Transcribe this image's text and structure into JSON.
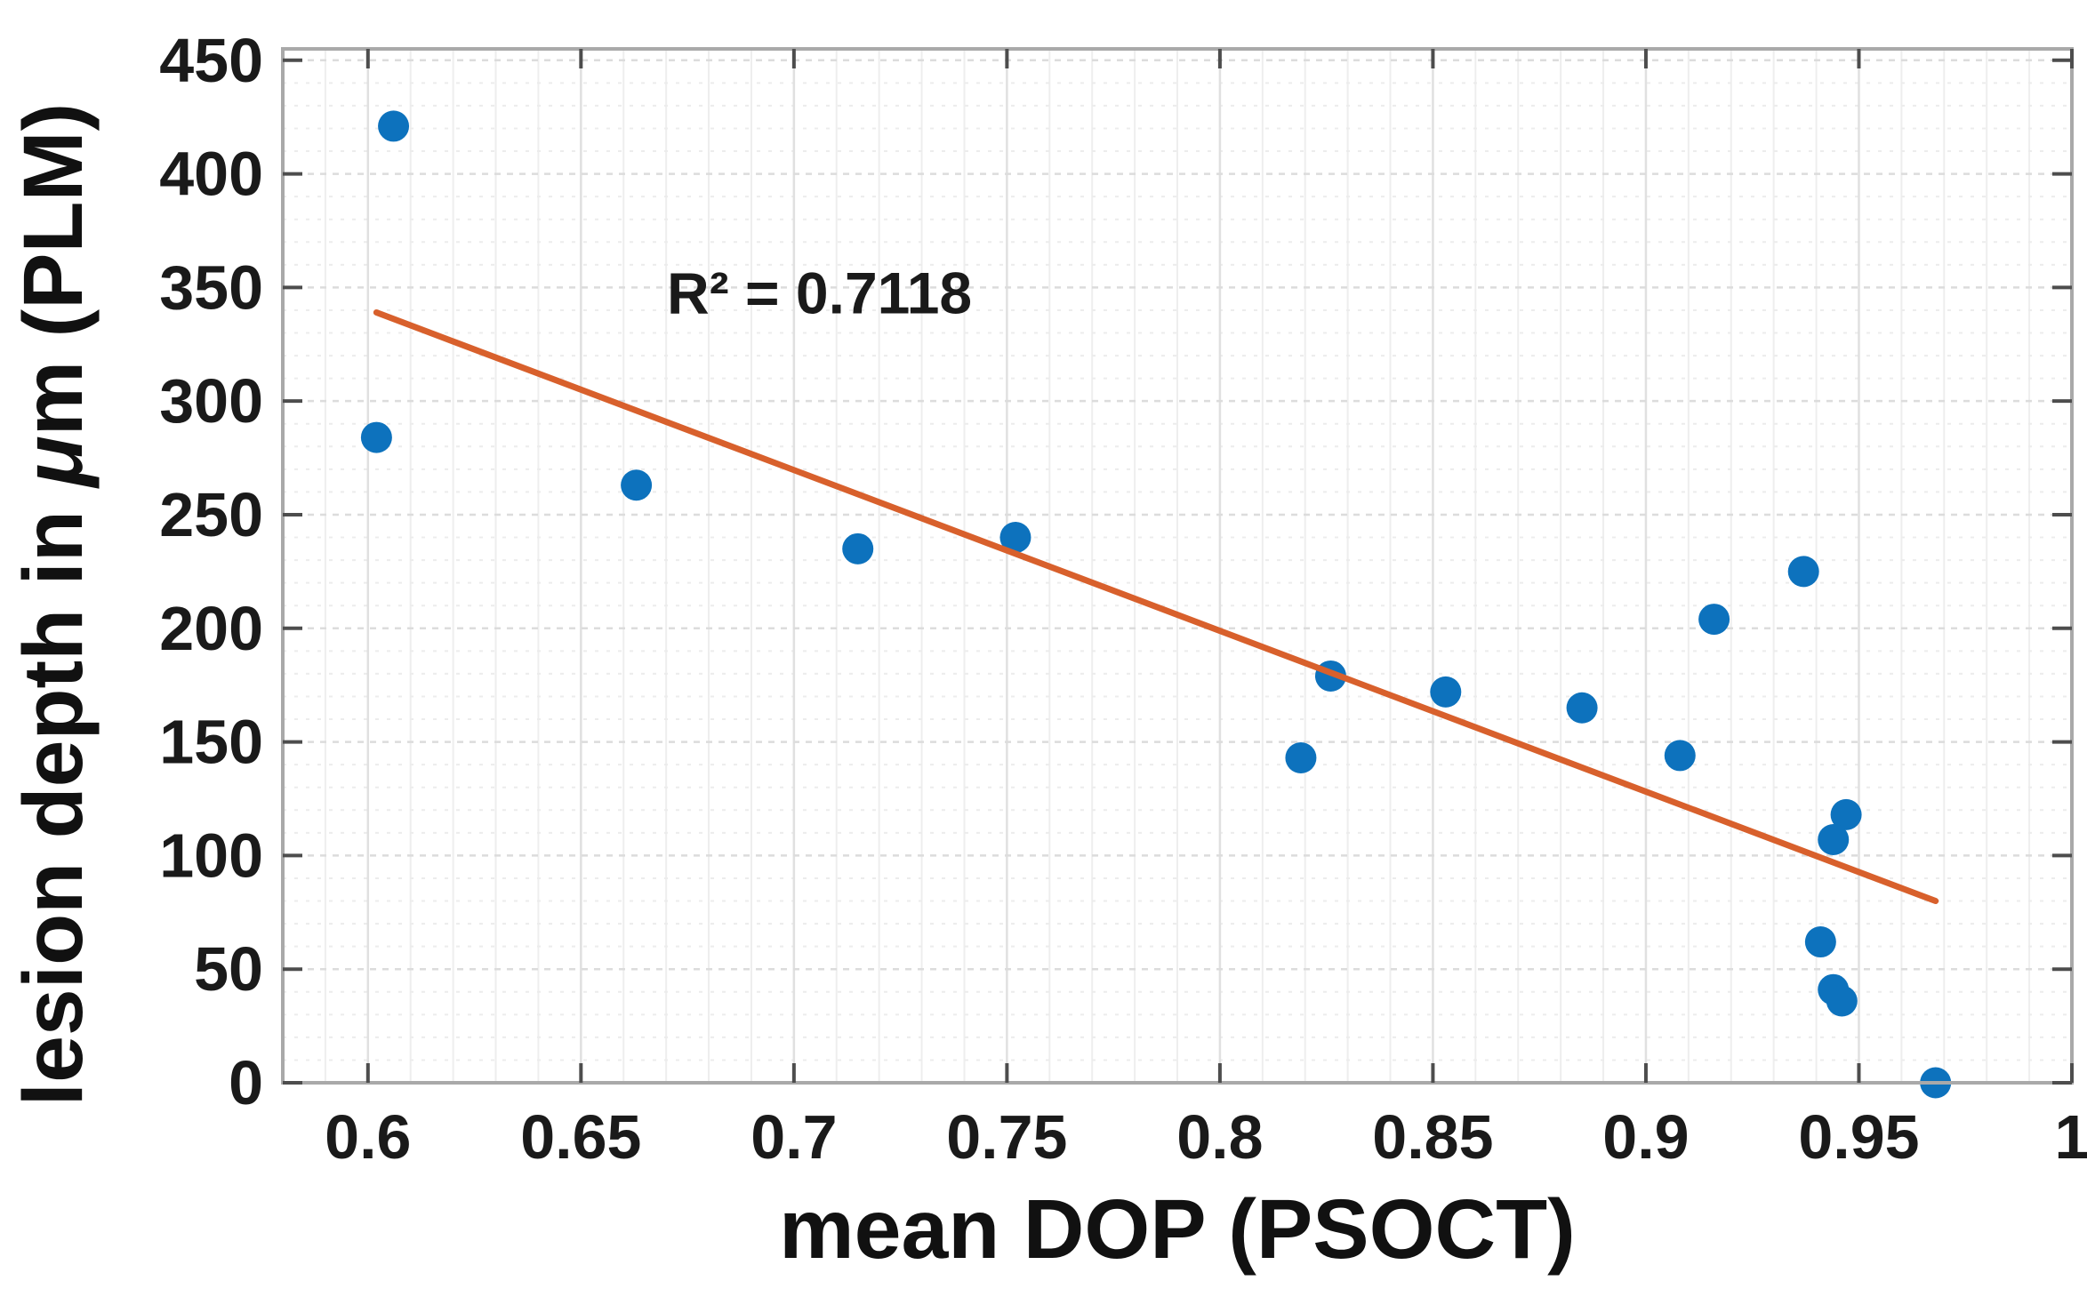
{
  "chart_data": {
    "type": "scatter",
    "title": "",
    "xlabel": "mean DOP (PSOCT)",
    "ylabel_parts": [
      {
        "text": "lesion depth in ",
        "italic": false
      },
      {
        "text": "μ",
        "italic": true
      },
      {
        "text": "m (PLM)",
        "italic": false
      }
    ],
    "annotation": {
      "text": "R² = 0.7118",
      "x": 0.706,
      "y": 348
    },
    "xlim": [
      0.58,
      1.0
    ],
    "ylim": [
      0,
      455
    ],
    "x_ticks": [
      0.6,
      0.65,
      0.7,
      0.75,
      0.8,
      0.85,
      0.9,
      0.95,
      1.0
    ],
    "x_tick_labels": [
      "0.6",
      "0.65",
      "0.7",
      "0.75",
      "0.8",
      "0.85",
      "0.9",
      "0.95",
      "1"
    ],
    "y_ticks": [
      0,
      50,
      100,
      150,
      200,
      250,
      300,
      350,
      400,
      450
    ],
    "y_tick_labels": [
      "0",
      "50",
      "100",
      "150",
      "200",
      "250",
      "300",
      "350",
      "400",
      "450"
    ],
    "x_minor_step": 0.01,
    "y_minor_step": 10,
    "grid": "on",
    "minor_grid": "on",
    "legend": "none",
    "points": [
      {
        "x": 0.606,
        "y": 421
      },
      {
        "x": 0.602,
        "y": 284
      },
      {
        "x": 0.663,
        "y": 263
      },
      {
        "x": 0.715,
        "y": 235
      },
      {
        "x": 0.752,
        "y": 240
      },
      {
        "x": 0.826,
        "y": 179
      },
      {
        "x": 0.819,
        "y": 143
      },
      {
        "x": 0.853,
        "y": 172
      },
      {
        "x": 0.885,
        "y": 165
      },
      {
        "x": 0.908,
        "y": 144
      },
      {
        "x": 0.916,
        "y": 204
      },
      {
        "x": 0.937,
        "y": 225
      },
      {
        "x": 0.947,
        "y": 118
      },
      {
        "x": 0.944,
        "y": 107
      },
      {
        "x": 0.941,
        "y": 62
      },
      {
        "x": 0.944,
        "y": 41
      },
      {
        "x": 0.946,
        "y": 36
      },
      {
        "x": 0.968,
        "y": 0
      }
    ],
    "trendline": {
      "x1": 0.602,
      "y1": 339,
      "x2": 0.968,
      "y2": 80
    },
    "colors": {
      "point_fill": "#0d72bd",
      "trend_line": "#d8602c",
      "frame": "#a9a9a9",
      "tick_mark": "#4d4d4d",
      "grid_major_v": "#e0e0e0",
      "grid_minor_v": "#eeeeee",
      "grid_major_h": "#dcdcdc",
      "grid_minor_h": "#ececec",
      "background": "#ffffff"
    }
  }
}
